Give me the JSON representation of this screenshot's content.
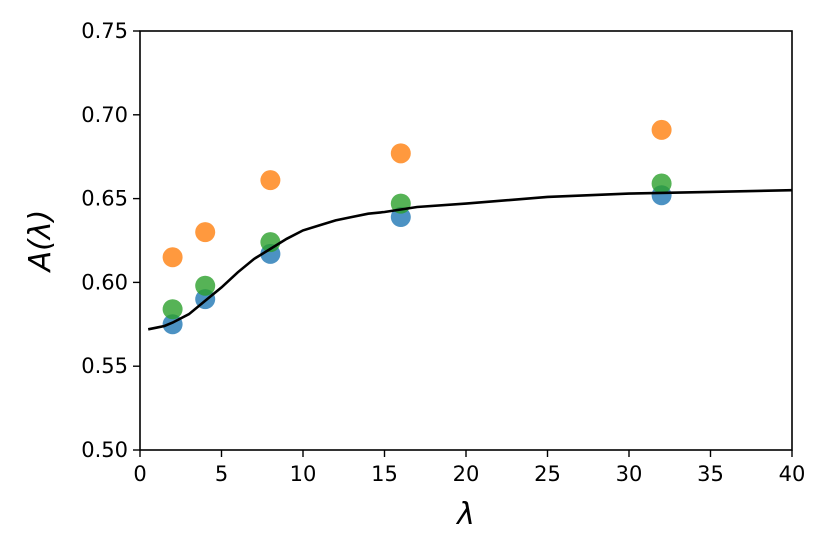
{
  "chart_data": {
    "type": "scatter",
    "title": "",
    "xlabel": "λ",
    "ylabel": "A(λ)",
    "xlim": [
      0,
      40
    ],
    "ylim": [
      0.5,
      0.75
    ],
    "xticks": [
      "0",
      "5",
      "10",
      "15",
      "20",
      "25",
      "30",
      "35",
      "40"
    ],
    "yticks": [
      "0.50",
      "0.55",
      "0.60",
      "0.65",
      "0.70",
      "0.75"
    ],
    "grid": false,
    "legend": "none",
    "series": [
      {
        "color": "#1f77b4",
        "x": [
          2,
          4,
          8,
          16,
          32
        ],
        "y": [
          0.575,
          0.59,
          0.617,
          0.639,
          0.652
        ]
      },
      {
        "color": "#2ca02c",
        "x": [
          2,
          4,
          8,
          16,
          32
        ],
        "y": [
          0.584,
          0.598,
          0.624,
          0.647,
          0.659
        ]
      },
      {
        "color": "#ff7f0e",
        "x": [
          2,
          4,
          8,
          16,
          32
        ],
        "y": [
          0.615,
          0.63,
          0.661,
          0.677,
          0.691
        ]
      }
    ],
    "curve": {
      "color": "#000000",
      "x": [
        0.5,
        1,
        1.5,
        2,
        3,
        4,
        5,
        6,
        7,
        8,
        9,
        10,
        11,
        12,
        13,
        14,
        15,
        17,
        20,
        25,
        30,
        35,
        40
      ],
      "y": [
        0.572,
        0.573,
        0.574,
        0.576,
        0.581,
        0.589,
        0.597,
        0.606,
        0.614,
        0.62,
        0.626,
        0.631,
        0.634,
        0.637,
        0.639,
        0.641,
        0.642,
        0.645,
        0.647,
        0.651,
        0.653,
        0.654,
        0.655
      ]
    }
  }
}
